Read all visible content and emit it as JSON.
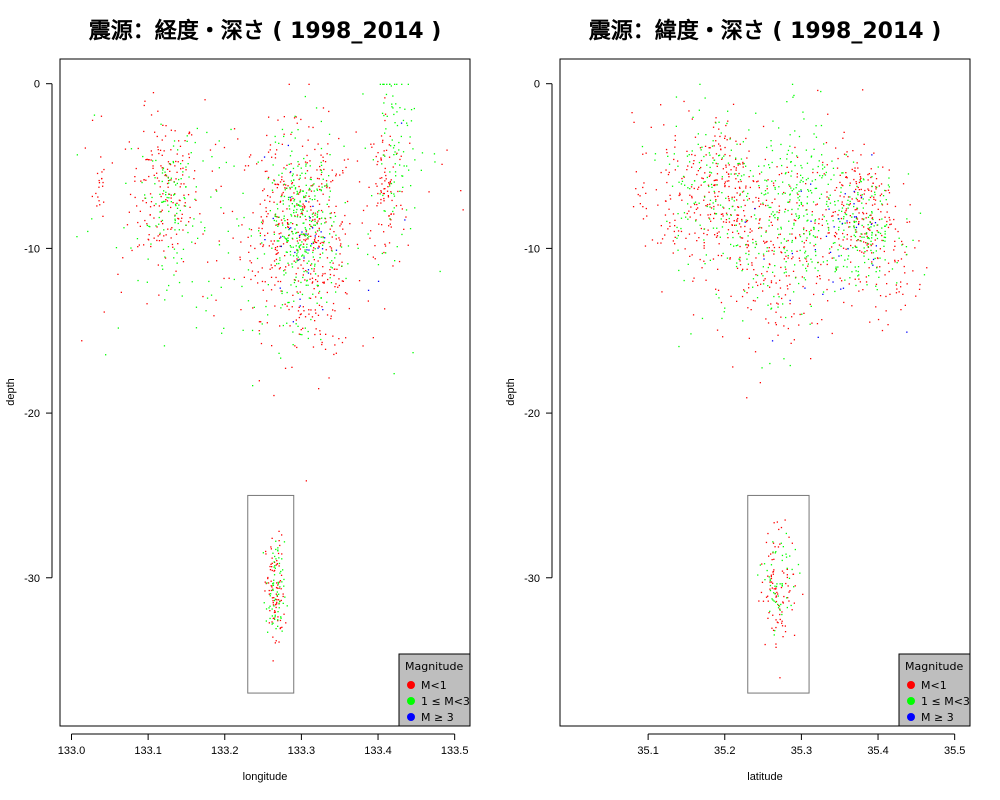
{
  "chart_data": [
    {
      "type": "scatter",
      "title": "震源：経度・深さ ( 1998_2014 )",
      "xlabel": "longitude",
      "ylabel": "depth",
      "xlim": [
        132.985,
        133.52
      ],
      "ylim": [
        -39,
        1.5
      ],
      "xticks": [
        133.0,
        133.1,
        133.2,
        133.3,
        133.4,
        133.5
      ],
      "xtick_labels": [
        "133.0",
        "133.1",
        "133.2",
        "133.3",
        "133.4",
        "133.5"
      ],
      "yticks": [
        0,
        -10,
        -20,
        -30
      ],
      "ytick_labels": [
        "0",
        "-10",
        "-20",
        "-30"
      ],
      "highlight_box": {
        "x": [
          133.23,
          133.29
        ],
        "y": [
          -25,
          -37
        ]
      },
      "legend": {
        "title": "Magnitude",
        "position": "bottom-right",
        "entries": [
          {
            "label": "M<1",
            "color": "#ff0000"
          },
          {
            "label": "1 ≤ M<3",
            "color": "#00ff00"
          },
          {
            "label": "M ≥ 3",
            "color": "#0000ff"
          }
        ]
      },
      "series": [
        {
          "name": "M<1",
          "color": "#ff0000",
          "count": 900,
          "clusters": [
            {
              "x": 133.12,
              "y": -6.5,
              "sx": 0.022,
              "sy": 2.4,
              "w": 0.18
            },
            {
              "x": 133.27,
              "y": -8.5,
              "sx": 0.025,
              "sy": 2.8,
              "w": 0.2
            },
            {
              "x": 133.32,
              "y": -10,
              "sx": 0.025,
              "sy": 3.5,
              "w": 0.28
            },
            {
              "x": 133.41,
              "y": -6.5,
              "sx": 0.012,
              "sy": 2.5,
              "w": 0.1
            },
            {
              "x": 133.035,
              "y": -6.2,
              "sx": 0.004,
              "sy": 1.0,
              "w": 0.02
            },
            {
              "x": 133.2,
              "y": -8,
              "sx": 0.13,
              "sy": 4.0,
              "w": 0.12
            },
            {
              "x": 133.265,
              "y": -31,
              "sx": 0.006,
              "sy": 1.8,
              "w": 0.1
            }
          ]
        },
        {
          "name": "1 ≤ M<3",
          "color": "#00ff00",
          "count": 700,
          "clusters": [
            {
              "x": 133.13,
              "y": -6.8,
              "sx": 0.02,
              "sy": 2.0,
              "w": 0.15
            },
            {
              "x": 133.3,
              "y": -9,
              "sx": 0.022,
              "sy": 2.6,
              "w": 0.45
            },
            {
              "x": 133.42,
              "y": -4,
              "sx": 0.012,
              "sy": 3.0,
              "w": 0.12
            },
            {
              "x": 133.22,
              "y": -9,
              "sx": 0.12,
              "sy": 4.0,
              "w": 0.18
            },
            {
              "x": 133.265,
              "y": -31,
              "sx": 0.006,
              "sy": 1.6,
              "w": 0.1
            }
          ]
        },
        {
          "name": "M ≥ 3",
          "color": "#0000ff",
          "count": 40,
          "clusters": [
            {
              "x": 133.3,
              "y": -9,
              "sx": 0.02,
              "sy": 2.5,
              "w": 0.9
            },
            {
              "x": 133.42,
              "y": -8,
              "sx": 0.01,
              "sy": 3.0,
              "w": 0.1
            }
          ]
        }
      ]
    },
    {
      "type": "scatter",
      "title": "震源：緯度・深さ ( 1998_2014 )",
      "xlabel": "latitude",
      "ylabel": "depth",
      "xlim": [
        34.985,
        35.52
      ],
      "ylim": [
        -39,
        1.5
      ],
      "xticks": [
        35.1,
        35.2,
        35.3,
        35.4,
        35.5
      ],
      "xtick_labels": [
        "35.1",
        "35.2",
        "35.3",
        "35.4",
        "35.5"
      ],
      "yticks": [
        0,
        -10,
        -20,
        -30
      ],
      "ytick_labels": [
        "0",
        "-10",
        "-20",
        "-30"
      ],
      "highlight_box": {
        "x": [
          35.23,
          35.31
        ],
        "y": [
          -25,
          -37
        ]
      },
      "legend": {
        "title": "Magnitude",
        "position": "bottom-right",
        "entries": [
          {
            "label": "M<1",
            "color": "#ff0000"
          },
          {
            "label": "1 ≤ M<3",
            "color": "#00ff00"
          },
          {
            "label": "M ≥ 3",
            "color": "#0000ff"
          }
        ]
      },
      "series": [
        {
          "name": "M<1",
          "color": "#ff0000",
          "count": 900,
          "clusters": [
            {
              "x": 35.2,
              "y": -6.5,
              "sx": 0.025,
              "sy": 2.5,
              "w": 0.22
            },
            {
              "x": 35.27,
              "y": -10,
              "sx": 0.04,
              "sy": 3.0,
              "w": 0.25
            },
            {
              "x": 35.37,
              "y": -7.5,
              "sx": 0.025,
              "sy": 2.0,
              "w": 0.22
            },
            {
              "x": 35.13,
              "y": -7,
              "sx": 0.025,
              "sy": 2.5,
              "w": 0.1
            },
            {
              "x": 35.27,
              "y": -30.5,
              "sx": 0.012,
              "sy": 1.8,
              "w": 0.1
            },
            {
              "x": 35.42,
              "y": -11,
              "sx": 0.02,
              "sy": 2.0,
              "w": 0.06
            }
          ]
        },
        {
          "name": "1 ≤ M<3",
          "color": "#00ff00",
          "count": 700,
          "clusters": [
            {
              "x": 35.18,
              "y": -6,
              "sx": 0.03,
              "sy": 2.5,
              "w": 0.22
            },
            {
              "x": 35.3,
              "y": -7.5,
              "sx": 0.03,
              "sy": 2.6,
              "w": 0.3
            },
            {
              "x": 35.38,
              "y": -8.8,
              "sx": 0.025,
              "sy": 1.6,
              "w": 0.25
            },
            {
              "x": 35.26,
              "y": -10,
              "sx": 0.05,
              "sy": 3.0,
              "w": 0.15
            },
            {
              "x": 35.27,
              "y": -30.5,
              "sx": 0.012,
              "sy": 1.6,
              "w": 0.08
            }
          ]
        },
        {
          "name": "M ≥ 3",
          "color": "#0000ff",
          "count": 40,
          "clusters": [
            {
              "x": 35.36,
              "y": -9,
              "sx": 0.03,
              "sy": 2.0,
              "w": 0.7
            },
            {
              "x": 35.27,
              "y": -12,
              "sx": 0.04,
              "sy": 3.0,
              "w": 0.3
            }
          ]
        }
      ]
    }
  ]
}
